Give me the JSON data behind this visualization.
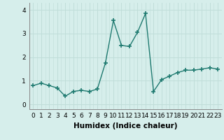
{
  "x": [
    0,
    1,
    2,
    3,
    4,
    5,
    6,
    7,
    8,
    9,
    10,
    11,
    12,
    13,
    14,
    15,
    16,
    17,
    18,
    19,
    20,
    21,
    22,
    23
  ],
  "y": [
    0.8,
    0.9,
    0.8,
    0.7,
    0.35,
    0.55,
    0.6,
    0.55,
    0.65,
    1.75,
    3.55,
    2.5,
    2.45,
    3.05,
    3.85,
    0.55,
    1.05,
    1.2,
    1.35,
    1.45,
    1.45,
    1.5,
    1.55,
    1.5
  ],
  "line_color": "#1f7a70",
  "marker": "+",
  "marker_size": 5,
  "marker_lw": 1.2,
  "xlabel": "Humidex (Indice chaleur)",
  "xlabel_fontsize": 7.5,
  "ylim": [
    -0.2,
    4.3
  ],
  "xlim": [
    -0.5,
    23.5
  ],
  "yticks": [
    0,
    1,
    2,
    3,
    4
  ],
  "xtick_labels": [
    "0",
    "1",
    "2",
    "3",
    "4",
    "5",
    "6",
    "7",
    "8",
    "9",
    "10",
    "11",
    "12",
    "13",
    "14",
    "15",
    "16",
    "17",
    "18",
    "19",
    "20",
    "21",
    "22",
    "23"
  ],
  "bg_color": "#d6eeeb",
  "grid_color": "#c0ddd9",
  "tick_fontsize": 6.5,
  "linewidth": 1.0
}
